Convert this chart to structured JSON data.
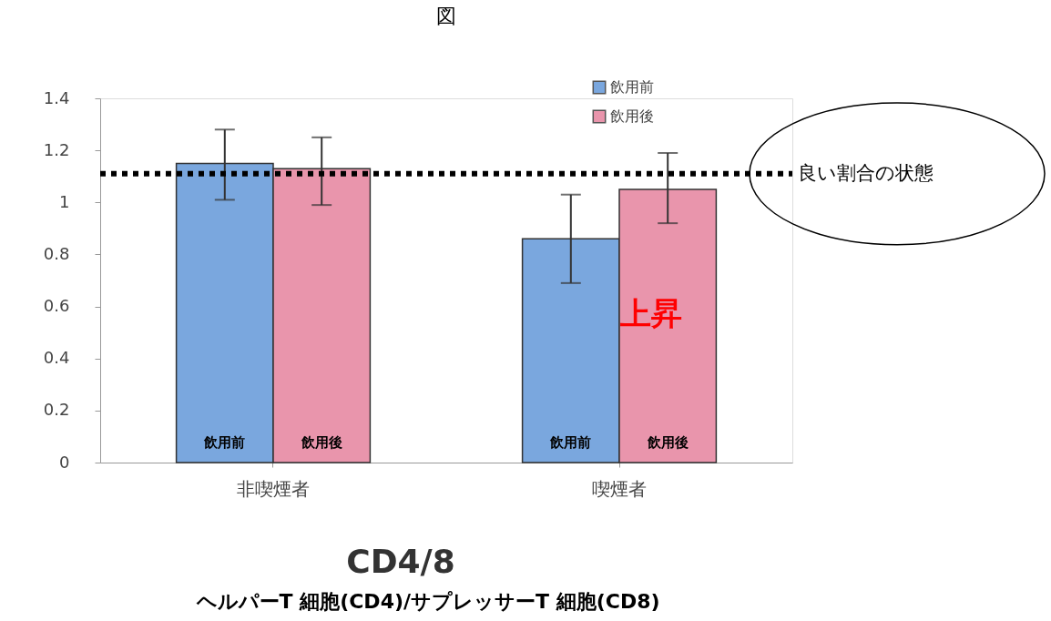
{
  "chart_data": {
    "type": "bar",
    "title": "図",
    "categories": [
      "非喫煙者",
      "喫煙者"
    ],
    "series": [
      {
        "name": "飲用前",
        "color": "#7aa7de",
        "values": [
          1.15,
          0.86
        ],
        "errors": [
          [
            1.01,
            1.28
          ],
          [
            0.69,
            1.03
          ]
        ]
      },
      {
        "name": "飲用後",
        "color": "#e995ac",
        "values": [
          1.13,
          1.05
        ],
        "errors": [
          [
            0.99,
            1.25
          ],
          [
            0.92,
            1.19
          ]
        ]
      }
    ],
    "ylim": [
      0,
      1.4
    ],
    "yticks": [
      0,
      0.2,
      0.4,
      0.6,
      0.8,
      1,
      1.2,
      1.4
    ],
    "ref_lines": [
      {
        "axis": "y",
        "value": 1.11,
        "label": "良い割合の状態",
        "color": "#000000",
        "line_style": "dotted"
      }
    ],
    "annotations": [
      "上昇",
      "CD4/8",
      "ヘルパーT 細胞(CD4)/サプレッサーT 細胞(CD8)"
    ],
    "legend": "top right",
    "grid": false
  }
}
